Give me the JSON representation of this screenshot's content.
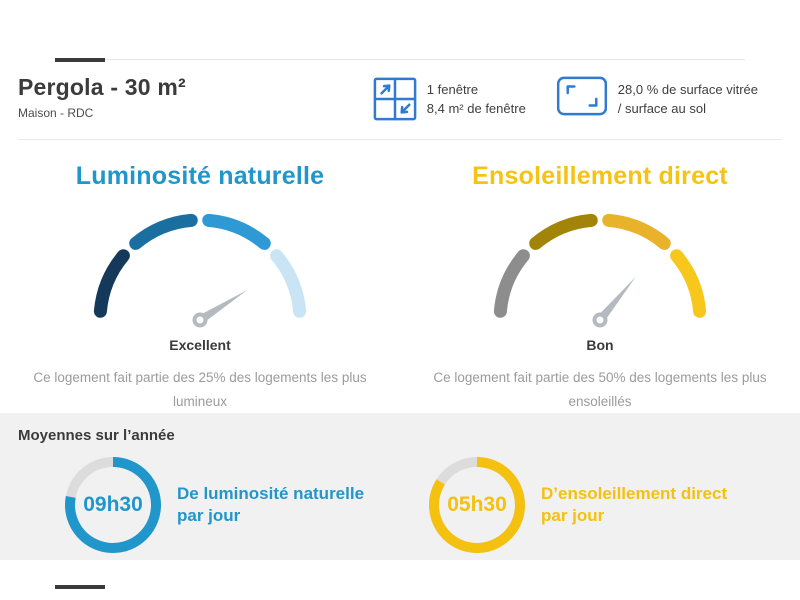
{
  "header": {
    "title": "Pergola - 30 m²",
    "subtitle": "Maison - RDC",
    "icon_color": "#2e7bd0",
    "window_info": {
      "line1": "1 fenêtre",
      "line2": "8,4 m² de fenêtre"
    },
    "glazing_info": {
      "line1": "28,0 % de surface vitrée",
      "line2": "/ surface au sol"
    }
  },
  "panel": {
    "heading": "Moyennes sur l’année"
  },
  "chart_data": [
    {
      "type": "gauge",
      "title": "Luminosité naturelle",
      "title_color": "#2196cb",
      "segments": [
        "#15395a",
        "#1a6fa0",
        "#2e99d4",
        "#c9e4f4"
      ],
      "needle_fraction": 0.82,
      "needle_color": "#b5bac0",
      "rating": "Excellent",
      "description": "Ce logement fait partie des 25% des logements les plus lumineux"
    },
    {
      "type": "gauge",
      "title": "Ensoleillement direct",
      "title_color": "#f5c313",
      "segments": [
        "#8d8d8d",
        "#a18408",
        "#e8b32a",
        "#f7c71b"
      ],
      "needle_fraction": 0.72,
      "needle_color": "#b5bac0",
      "rating": "Bon",
      "description": "Ce logement fait partie des 50% des logements les plus ensoleillés"
    },
    {
      "type": "donut",
      "value_label": "09h30",
      "fraction": 0.78,
      "color": "#2196cb",
      "track_color": "#dcdcdc",
      "label_line1": "De luminosité naturelle",
      "label_line2": "par jour"
    },
    {
      "type": "donut",
      "value_label": "05h30",
      "fraction": 0.84,
      "color": "#f4c110",
      "track_color": "#dcdcdc",
      "label_line1": "D’ensoleillement direct",
      "label_line2": "par jour"
    }
  ]
}
